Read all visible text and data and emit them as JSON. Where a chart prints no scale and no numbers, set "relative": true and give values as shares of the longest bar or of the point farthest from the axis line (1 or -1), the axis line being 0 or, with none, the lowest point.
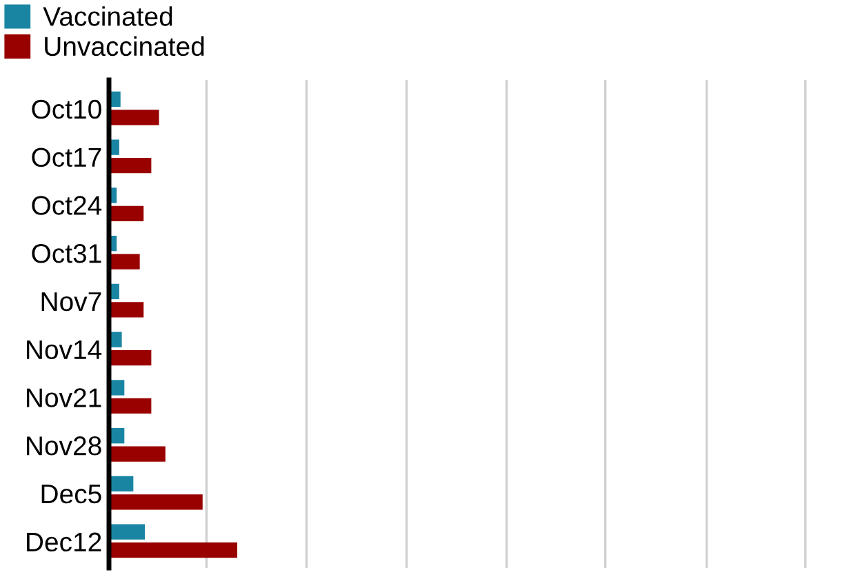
{
  "chart_data": {
    "type": "bar",
    "orientation": "horizontal",
    "relative": true,
    "legend": "top left",
    "tick_labels": "y",
    "ref_lines": [
      {
        "axis": "x",
        "value": 0.76,
        "color": "#d0d0d0"
      },
      {
        "axis": "x",
        "value": 1.54,
        "color": "#d0d0d0"
      },
      {
        "axis": "x",
        "value": 2.32,
        "color": "#d0d0d0"
      },
      {
        "axis": "x",
        "value": 3.1,
        "color": "#d0d0d0"
      },
      {
        "axis": "x",
        "value": 3.87,
        "color": "#d0d0d0"
      },
      {
        "axis": "x",
        "value": 4.66,
        "color": "#d0d0d0"
      },
      {
        "axis": "x",
        "value": 5.43,
        "color": "#d0d0d0"
      }
    ],
    "categories": [
      "Oct10",
      "Oct17",
      "Oct24",
      "Oct31",
      "Nov7",
      "Nov14",
      "Nov21",
      "Nov28",
      "Dec5",
      "Dec12"
    ],
    "series": [
      {
        "name": "Vaccinated",
        "color": "#1a85a3",
        "values": [
          0.09,
          0.08,
          0.06,
          0.06,
          0.08,
          0.1,
          0.12,
          0.12,
          0.19,
          0.28
        ]
      },
      {
        "name": "Unvaccinated",
        "color": "#990000",
        "values": [
          0.39,
          0.33,
          0.27,
          0.24,
          0.27,
          0.33,
          0.33,
          0.44,
          0.73,
          1
        ]
      }
    ]
  }
}
